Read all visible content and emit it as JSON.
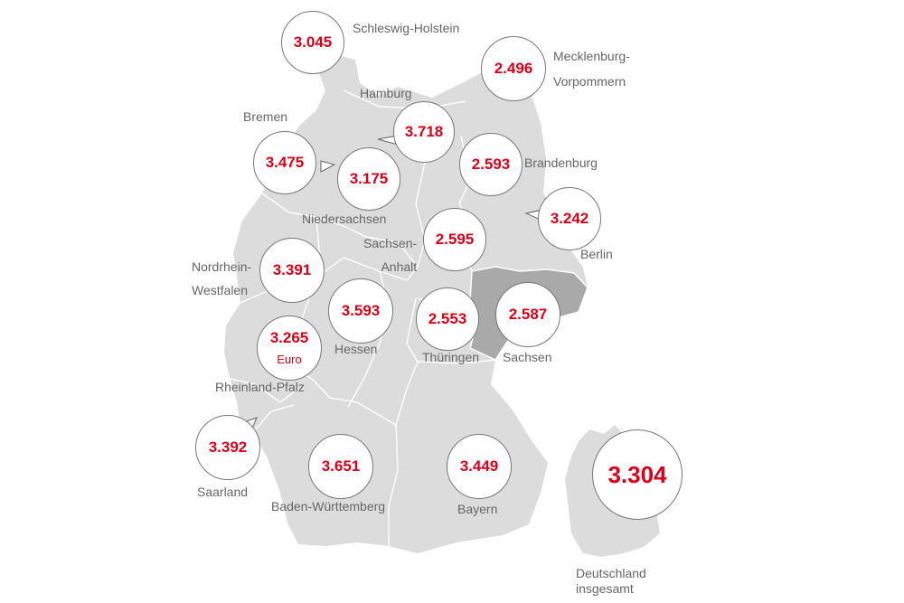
{
  "map": {
    "colors": {
      "land": "#dcdcdc",
      "highlight": "#a9a9a9",
      "border": "#ffffff",
      "value": "#d9001b",
      "label": "#666666"
    },
    "unit": "Euro",
    "national": {
      "value": "3.304",
      "label_line1": "Deutschland",
      "label_line2": "insgesamt"
    },
    "states": [
      {
        "id": "sh",
        "name": "Schleswig-Holstein",
        "value": "3.045"
      },
      {
        "id": "mv",
        "name_line1": "Mecklenburg-",
        "name_line2": "Vorpommern",
        "value": "2.496"
      },
      {
        "id": "hh",
        "name": "Hamburg",
        "value": "3.718"
      },
      {
        "id": "hb",
        "name": "Bremen",
        "value": "3.475"
      },
      {
        "id": "bb",
        "name": "Brandenburg",
        "value": "2.593"
      },
      {
        "id": "ni",
        "name": "Niedersachsen",
        "value": "3.175"
      },
      {
        "id": "be",
        "name": "Berlin",
        "value": "3.242"
      },
      {
        "id": "st",
        "name_line1": "Sachsen-",
        "name_line2": "Anhalt",
        "value": "2.595"
      },
      {
        "id": "nw",
        "name_line1": "Nordrhein-",
        "name_line2": "Westfalen",
        "value": "3.391"
      },
      {
        "id": "he",
        "name": "Hessen",
        "value": "3.593"
      },
      {
        "id": "th",
        "name": "Thüringen",
        "value": "2.553"
      },
      {
        "id": "sn",
        "name": "Sachsen",
        "value": "2.587"
      },
      {
        "id": "rp",
        "name": "Rheinland-Pfalz",
        "value": "3.265"
      },
      {
        "id": "sl",
        "name": "Saarland",
        "value": "3.392"
      },
      {
        "id": "bw",
        "name": "Baden-Württemberg",
        "value": "3.651"
      },
      {
        "id": "by",
        "name": "Bayern",
        "value": "3.449"
      }
    ]
  }
}
